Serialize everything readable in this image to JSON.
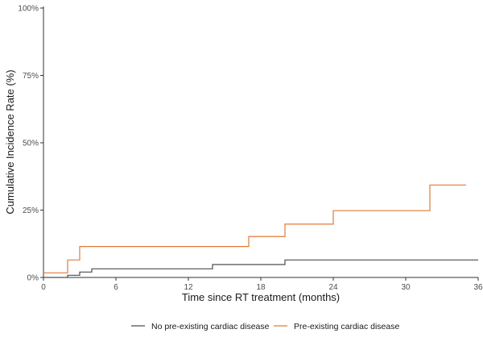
{
  "chart_data": {
    "type": "line",
    "step": true,
    "title": "",
    "xlabel": "Time since RT treatment (months)",
    "ylabel": "Cumulative Incidence Rate (%)",
    "xlim": [
      0,
      36
    ],
    "ylim": [
      0,
      100
    ],
    "x_ticks": [
      0,
      6,
      12,
      18,
      24,
      30,
      36
    ],
    "y_ticks": [
      0,
      25,
      50,
      75,
      100
    ],
    "y_tick_labels": [
      "0%",
      "25%",
      "50%",
      "75%",
      "100%"
    ],
    "grid": false,
    "legend_position": "bottom",
    "series": [
      {
        "name": "No pre-existing cardiac disease",
        "color": "#4d4d4d",
        "x": [
          0,
          2,
          3,
          4,
          14,
          20,
          36
        ],
        "y": [
          0,
          0.8,
          2,
          3.2,
          4.8,
          6.5,
          6.5
        ]
      },
      {
        "name": "Pre-existing cardiac disease",
        "color": "#e07b39",
        "x": [
          0,
          2,
          3,
          17,
          20,
          24,
          32,
          35
        ],
        "y": [
          1.7,
          6.5,
          11.5,
          15.2,
          19.8,
          24.8,
          34.3,
          34.3
        ]
      }
    ]
  }
}
